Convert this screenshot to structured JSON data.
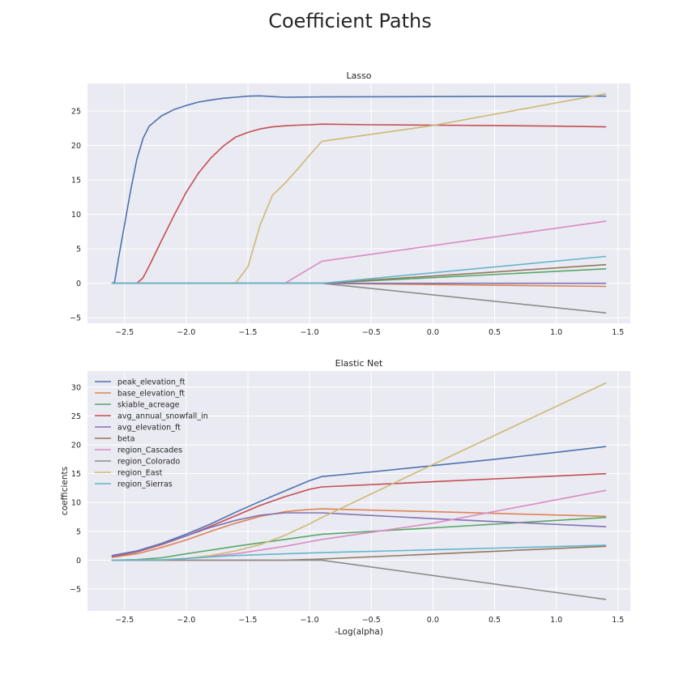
{
  "figure_title": "Coefficient Paths",
  "colors": {
    "plot_bg": "#EAEAF2",
    "grid": "#FFFFFF",
    "series": [
      "#4C72B0",
      "#DD8452",
      "#55A868",
      "#C44E52",
      "#8172B3",
      "#937860",
      "#DA8BC3",
      "#8C8C8C",
      "#CCB974",
      "#64B5CD"
    ]
  },
  "chart_data": [
    {
      "type": "line",
      "title": "Lasso",
      "xlabel": "",
      "ylabel": "",
      "xlim": [
        -2.8,
        1.6
      ],
      "ylim": [
        -5.8,
        29
      ],
      "xticks": [
        -2.5,
        -2.0,
        -1.5,
        -1.0,
        -0.5,
        0.0,
        0.5,
        1.0,
        1.5
      ],
      "xtick_labels": [
        "−2.5",
        "−2.0",
        "−1.5",
        "−1.0",
        "−0.5",
        "0.0",
        "0.5",
        "1.0",
        "1.5"
      ],
      "yticks": [
        -5,
        0,
        5,
        10,
        15,
        20,
        25
      ],
      "ytick_labels": [
        "−5",
        "0",
        "5",
        "10",
        "15",
        "20",
        "25"
      ],
      "grid": true,
      "legend": "none",
      "series": [
        {
          "name": "peak_elevation_ft",
          "x": [
            -2.6,
            -2.58,
            -2.55,
            -2.5,
            -2.45,
            -2.4,
            -2.35,
            -2.3,
            -2.2,
            -2.1,
            -2.0,
            -1.9,
            -1.8,
            -1.7,
            -1.6,
            -1.5,
            -1.4,
            -1.3,
            -1.2,
            -0.9,
            0.0,
            1.4
          ],
          "y": [
            0,
            0.2,
            3.5,
            8.5,
            13.5,
            18.0,
            21.0,
            22.8,
            24.3,
            25.2,
            25.8,
            26.3,
            26.6,
            26.85,
            27.0,
            27.15,
            27.2,
            27.1,
            27.0,
            27.05,
            27.1,
            27.15
          ]
        },
        {
          "name": "base_elevation_ft",
          "x": [
            -2.6,
            -0.9,
            1.4
          ],
          "y": [
            0,
            0,
            -0.45
          ]
        },
        {
          "name": "skiable_acreage",
          "x": [
            -2.6,
            -0.9,
            1.4
          ],
          "y": [
            0,
            0,
            2.1
          ]
        },
        {
          "name": "avg_annual_snowfall_in",
          "x": [
            -2.6,
            -2.4,
            -2.35,
            -2.3,
            -2.2,
            -2.1,
            -2.0,
            -1.9,
            -1.8,
            -1.7,
            -1.6,
            -1.5,
            -1.4,
            -1.3,
            -1.2,
            -1.1,
            -1.0,
            -0.9,
            -0.5,
            0.0,
            0.5,
            1.0,
            1.4
          ],
          "y": [
            0,
            0,
            0.8,
            2.5,
            6.2,
            9.8,
            13.2,
            16.0,
            18.2,
            19.9,
            21.2,
            21.9,
            22.4,
            22.7,
            22.85,
            22.95,
            23.0,
            23.1,
            23.0,
            22.95,
            22.9,
            22.8,
            22.7
          ]
        },
        {
          "name": "avg_elevation_ft",
          "x": [
            -2.6,
            -0.9,
            1.4
          ],
          "y": [
            0,
            0,
            0
          ]
        },
        {
          "name": "beta",
          "x": [
            -2.6,
            -0.9,
            1.4
          ],
          "y": [
            0,
            0,
            2.7
          ]
        },
        {
          "name": "region_Cascades",
          "x": [
            -2.6,
            -1.2,
            -0.9,
            1.4
          ],
          "y": [
            0,
            0,
            3.2,
            9.0
          ]
        },
        {
          "name": "region_Colorado",
          "x": [
            -2.6,
            -0.9,
            1.4
          ],
          "y": [
            0,
            0,
            -4.3
          ]
        },
        {
          "name": "region_East",
          "x": [
            -2.6,
            -1.6,
            -1.5,
            -1.4,
            -1.3,
            -1.2,
            -1.1,
            -1.0,
            -0.9,
            0.0,
            1.4
          ],
          "y": [
            0,
            0,
            2.4,
            8.5,
            12.8,
            14.5,
            16.5,
            18.6,
            20.6,
            22.9,
            27.5
          ]
        },
        {
          "name": "region_Sierras",
          "x": [
            -2.6,
            -0.9,
            1.4
          ],
          "y": [
            0,
            0,
            3.9
          ]
        }
      ]
    },
    {
      "type": "line",
      "title": "Elastic Net",
      "xlabel": "-Log(alpha)",
      "ylabel": "coefficients",
      "xlim": [
        -2.8,
        1.6
      ],
      "ylim": [
        -8.8,
        32.8
      ],
      "xticks": [
        -2.5,
        -2.0,
        -1.5,
        -1.0,
        -0.5,
        0.0,
        0.5,
        1.0,
        1.5
      ],
      "xtick_labels": [
        "−2.5",
        "−2.0",
        "−1.5",
        "−1.0",
        "−0.5",
        "0.0",
        "0.5",
        "1.0",
        "1.5"
      ],
      "yticks": [
        -5,
        0,
        5,
        10,
        15,
        20,
        25,
        30
      ],
      "ytick_labels": [
        "−5",
        "0",
        "5",
        "10",
        "15",
        "20",
        "25",
        "30"
      ],
      "grid": true,
      "legend": "top-left",
      "series": [
        {
          "name": "peak_elevation_ft",
          "x": [
            -2.6,
            -2.4,
            -2.2,
            -2.0,
            -1.8,
            -1.6,
            -1.4,
            -1.2,
            -1.0,
            -0.9,
            -0.5,
            0.0,
            0.5,
            1.0,
            1.4
          ],
          "y": [
            0.8,
            1.6,
            2.9,
            4.5,
            6.3,
            8.3,
            10.2,
            12.0,
            13.8,
            14.5,
            15.3,
            16.4,
            17.5,
            18.7,
            19.7
          ]
        },
        {
          "name": "base_elevation_ft",
          "x": [
            -2.6,
            -2.4,
            -2.2,
            -2.0,
            -1.8,
            -1.6,
            -1.4,
            -1.2,
            -1.0,
            -0.9,
            0.0,
            1.4
          ],
          "y": [
            0.5,
            1.1,
            2.2,
            3.5,
            5.0,
            6.4,
            7.6,
            8.4,
            8.8,
            8.9,
            8.4,
            7.6
          ]
        },
        {
          "name": "skiable_acreage",
          "x": [
            -2.6,
            -2.4,
            -2.2,
            -2.0,
            -1.6,
            -1.2,
            -0.9,
            0.0,
            1.4
          ],
          "y": [
            0,
            0.1,
            0.4,
            1.1,
            2.4,
            3.6,
            4.5,
            5.6,
            7.4
          ]
        },
        {
          "name": "avg_annual_snowfall_in",
          "x": [
            -2.6,
            -2.4,
            -2.2,
            -2.0,
            -1.8,
            -1.6,
            -1.4,
            -1.2,
            -1.0,
            -0.9,
            0.0,
            1.4
          ],
          "y": [
            0.6,
            1.4,
            2.7,
            4.2,
            5.9,
            7.7,
            9.5,
            11.0,
            12.3,
            12.7,
            13.6,
            15.0
          ]
        },
        {
          "name": "avg_elevation_ft",
          "x": [
            -2.6,
            -2.4,
            -2.2,
            -2.0,
            -1.8,
            -1.6,
            -1.4,
            -1.2,
            -0.9,
            0.0,
            1.4
          ],
          "y": [
            0.7,
            1.5,
            2.8,
            4.2,
            5.7,
            6.9,
            7.8,
            8.2,
            8.2,
            7.2,
            5.8
          ]
        },
        {
          "name": "beta",
          "x": [
            -2.6,
            -1.2,
            -0.9,
            1.4
          ],
          "y": [
            0,
            0,
            0.2,
            2.4
          ]
        },
        {
          "name": "region_Cascades",
          "x": [
            -2.6,
            -2.2,
            -2.0,
            -1.6,
            -1.2,
            -0.9,
            0.0,
            1.4
          ],
          "y": [
            0,
            0.05,
            0.3,
            1.1,
            2.4,
            3.6,
            6.4,
            12.1
          ]
        },
        {
          "name": "region_Colorado",
          "x": [
            -2.6,
            -1.2,
            -0.9,
            1.4
          ],
          "y": [
            0,
            0,
            0,
            -6.8
          ]
        },
        {
          "name": "region_East",
          "x": [
            -2.6,
            -2.2,
            -2.0,
            -1.8,
            -1.6,
            -1.4,
            -1.2,
            -1.0,
            -0.9,
            0.0,
            1.4
          ],
          "y": [
            0,
            0.05,
            0.3,
            0.8,
            1.6,
            2.7,
            4.3,
            6.3,
            7.4,
            16.6,
            30.7
          ]
        },
        {
          "name": "region_Sierras",
          "x": [
            -2.6,
            -2.2,
            -2.0,
            -1.6,
            -1.2,
            -0.9,
            0.0,
            1.4
          ],
          "y": [
            0,
            0.05,
            0.3,
            0.8,
            1.1,
            1.3,
            1.8,
            2.6
          ]
        }
      ]
    }
  ]
}
